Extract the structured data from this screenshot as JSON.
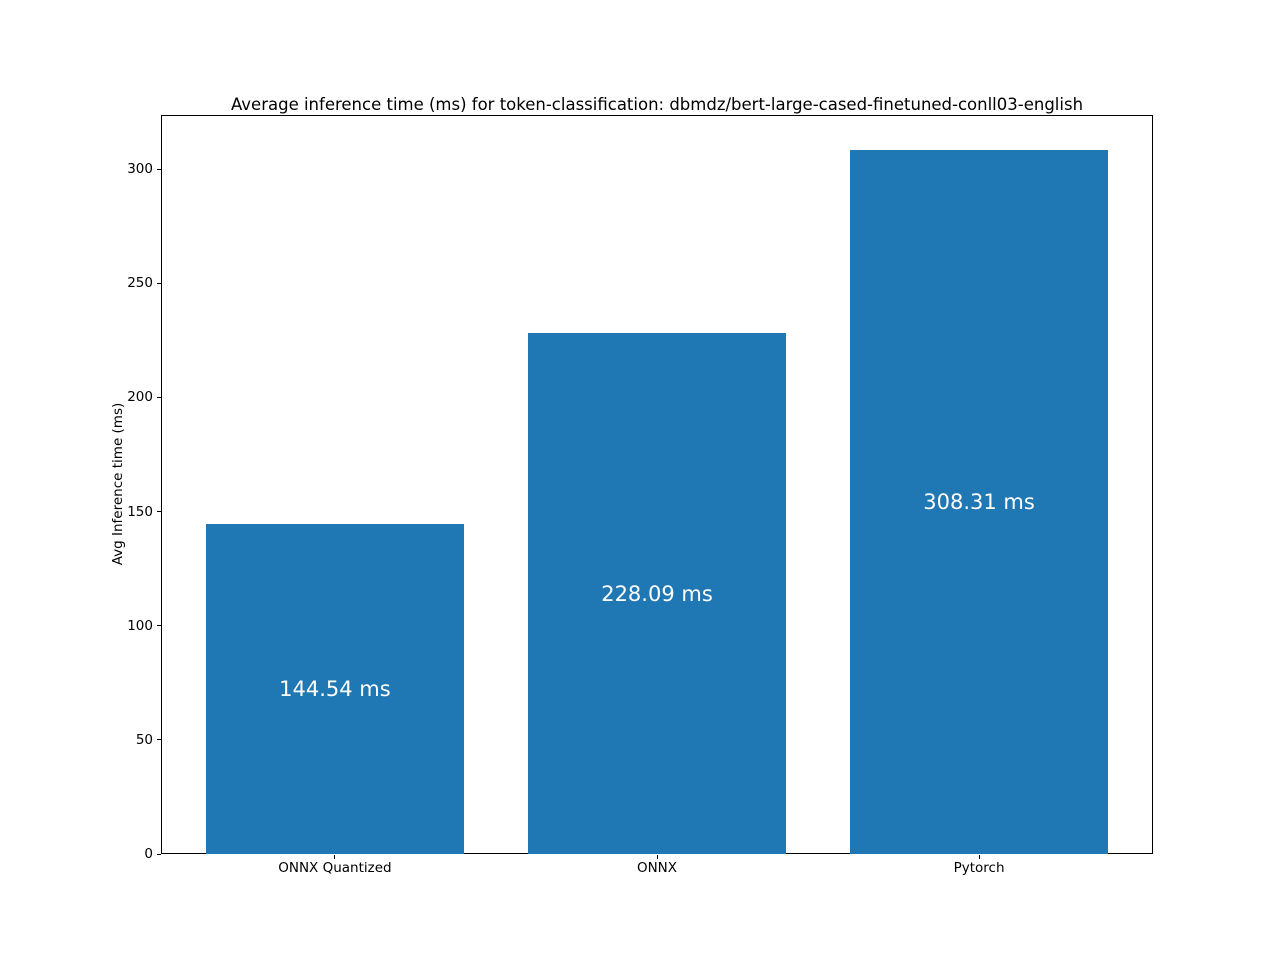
{
  "chart_data": {
    "type": "bar",
    "title": "Average inference time (ms) for token-classification: dbmdz/bert-large-cased-finetuned-conll03-english",
    "categories": [
      "ONNX Quantized",
      "ONNX",
      "Pytorch"
    ],
    "values": [
      144.54,
      228.09,
      308.31
    ],
    "bar_labels": [
      "144.54 ms",
      "228.09 ms",
      "308.31 ms"
    ],
    "xlabel": "",
    "ylabel": "Avg Inference time (ms)",
    "ylim": [
      0,
      323.7
    ],
    "yticks": [
      0,
      50,
      100,
      150,
      200,
      250,
      300
    ],
    "grid": false,
    "legend": null,
    "colors": {
      "bar": "#1f77b4",
      "bar_label_text": "#ffffff",
      "axis": "#000000",
      "text": "#000000",
      "background": "#ffffff"
    }
  }
}
